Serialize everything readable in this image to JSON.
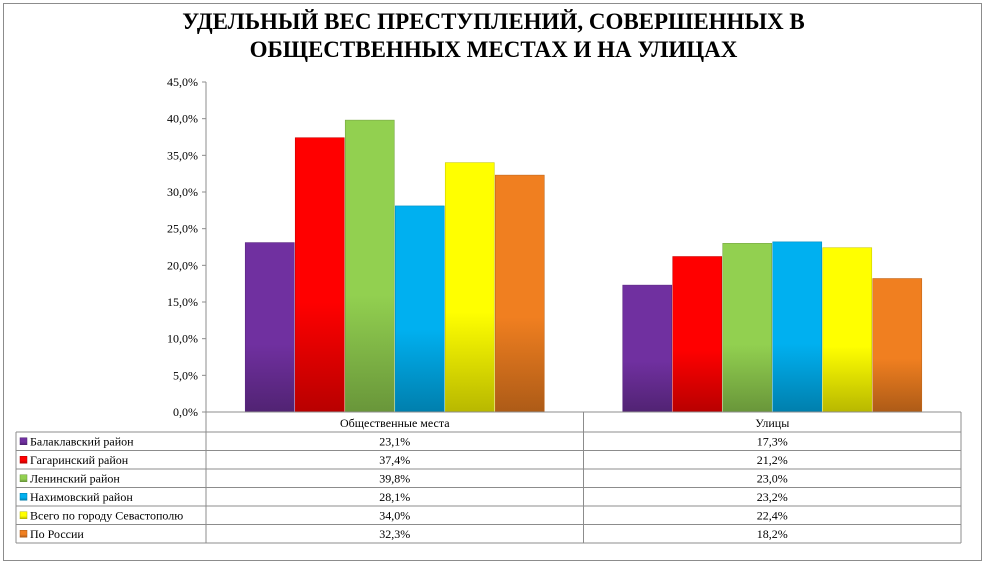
{
  "chart_data": {
    "type": "bar",
    "title": "УДЕЛЬНЫЙ ВЕС  ПРЕСТУПЛЕНИЙ, СОВЕРШЕННЫХ В\nОБЩЕСТВЕННЫХ МЕСТАХ  И НА УЛИЦАХ",
    "categories": [
      "Общественные места",
      "Улицы"
    ],
    "ylim": [
      0,
      45
    ],
    "yticks": [
      "0,0%",
      "5,0%",
      "10,0%",
      "15,0%",
      "20,0%",
      "25,0%",
      "30,0%",
      "35,0%",
      "40,0%",
      "45,0%"
    ],
    "grid": false,
    "legend": "data-table-left",
    "series": [
      {
        "name": "Балаклавский  район",
        "values": [
          23.1,
          17.3
        ],
        "labels": [
          "23,1%",
          "17,3%"
        ],
        "color": "#7030a0"
      },
      {
        "name": "Гагаринский район",
        "values": [
          37.4,
          21.2
        ],
        "labels": [
          "37,4%",
          "21,2%"
        ],
        "color": "#ff0000"
      },
      {
        "name": "Ленинский район",
        "values": [
          39.8,
          23.0
        ],
        "labels": [
          "39,8%",
          "23,0%"
        ],
        "color": "#92d050"
      },
      {
        "name": "Нахимовский  район",
        "values": [
          28.1,
          23.2
        ],
        "labels": [
          "28,1%",
          "23,2%"
        ],
        "color": "#00b0f0"
      },
      {
        "name": "Всего по городу Севастополю",
        "values": [
          34.0,
          22.4
        ],
        "labels": [
          "34,0%",
          "22,4%"
        ],
        "color": "#ffff00"
      },
      {
        "name": "По России",
        "values": [
          32.3,
          18.2
        ],
        "labels": [
          "32,3%",
          "18,2%"
        ],
        "color": "#f07f20"
      }
    ]
  }
}
